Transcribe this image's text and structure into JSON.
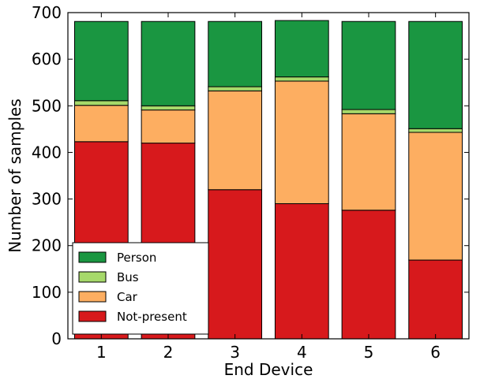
{
  "chart_data": {
    "type": "bar",
    "stacked": true,
    "title": "",
    "xlabel": "End Device",
    "ylabel": "Number of samples",
    "categories": [
      "1",
      "2",
      "3",
      "4",
      "5",
      "6"
    ],
    "ylim": [
      0,
      700
    ],
    "yticks": [
      0,
      100,
      200,
      300,
      400,
      500,
      600,
      700
    ],
    "grid": false,
    "legend_position": "lower-left",
    "series": [
      {
        "name": "Not-present",
        "color": "#d7191c",
        "values": [
          423,
          420,
          320,
          290,
          276,
          169
        ]
      },
      {
        "name": "Car",
        "color": "#fdae61",
        "values": [
          78,
          71,
          212,
          263,
          207,
          274
        ]
      },
      {
        "name": "Bus",
        "color": "#a6d96a",
        "values": [
          10,
          9,
          9,
          9,
          9,
          8
        ]
      },
      {
        "name": "Person",
        "color": "#1a9641",
        "values": [
          170,
          181,
          140,
          121,
          189,
          230
        ]
      }
    ],
    "legend_order": [
      "Person",
      "Bus",
      "Car",
      "Not-present"
    ]
  }
}
